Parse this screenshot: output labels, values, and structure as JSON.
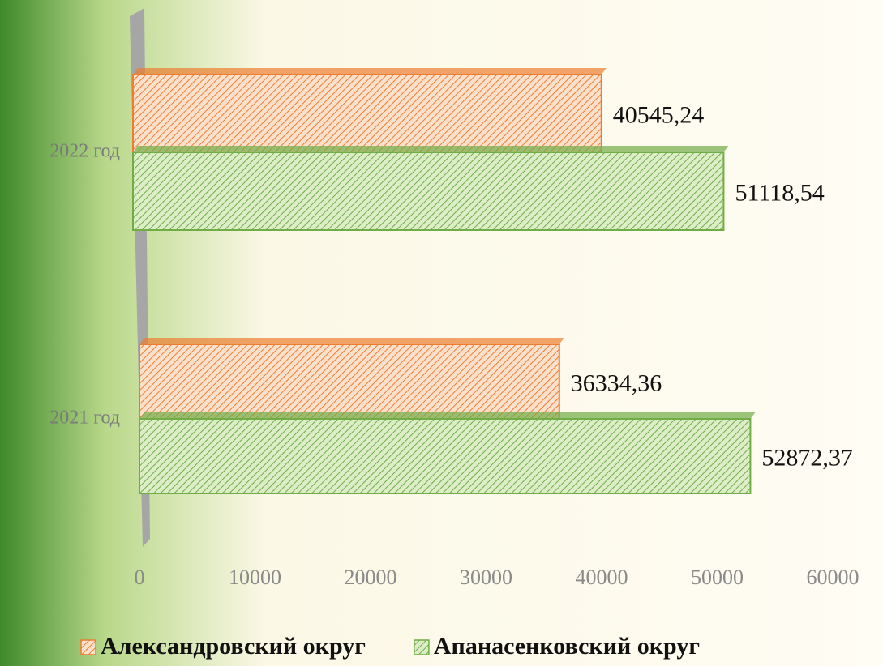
{
  "chart_data": {
    "type": "bar",
    "orientation": "horizontal",
    "categories": [
      "2022 год",
      "2021 год"
    ],
    "series": [
      {
        "name": "Александровский округ",
        "color": "#ed7d31",
        "values": [
          40545.24,
          36334.36
        ],
        "value_labels": [
          "40545,24",
          "36334,36"
        ]
      },
      {
        "name": "Апанасенковский округ",
        "color": "#70ad47",
        "values": [
          51118.54,
          52872.37
        ],
        "value_labels": [
          "51118,54",
          "52872,37"
        ]
      }
    ],
    "xlim": [
      0,
      60000
    ],
    "xticks": [
      0,
      10000,
      20000,
      30000,
      40000,
      50000,
      60000
    ],
    "grid": false
  }
}
